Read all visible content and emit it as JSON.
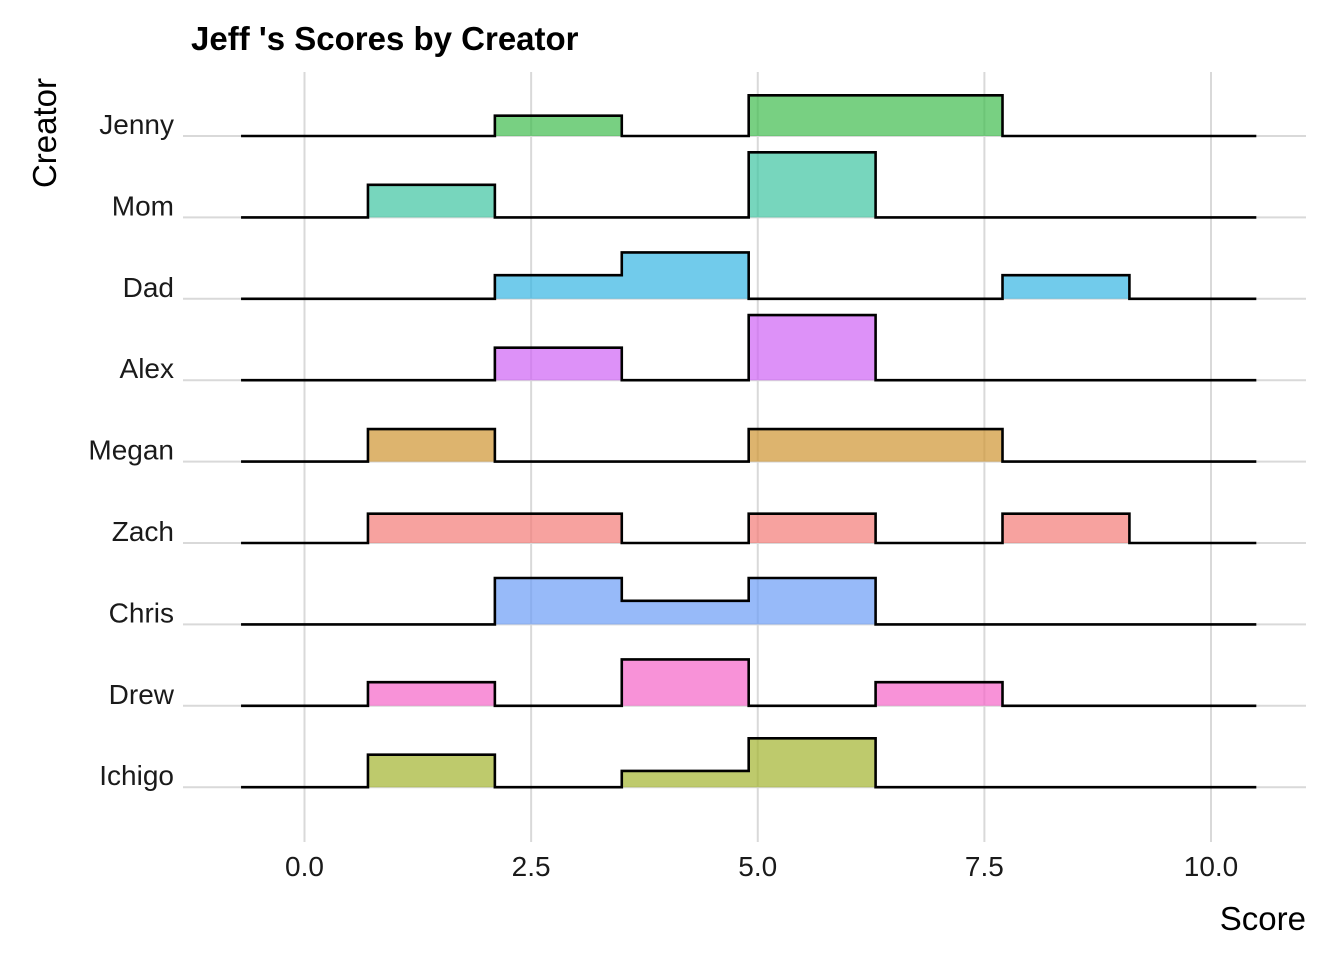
{
  "chart_data": {
    "type": "ridgeline-histogram",
    "title": "Jeff 's Scores by Creator",
    "xlabel": "Score",
    "ylabel": "Creator",
    "xlim": [
      -1.4,
      10.7
    ],
    "x_ticks": [
      0.0,
      2.5,
      5.0,
      7.5,
      10.0
    ],
    "x_tick_labels": [
      "0.0",
      "2.5",
      "5.0",
      "7.5",
      "10.0"
    ],
    "x_range": [
      -0.7,
      10.5
    ],
    "bin_edges": [
      -0.7,
      0.7,
      2.1,
      3.5,
      4.9,
      6.3,
      7.7,
      9.1,
      10.5
    ],
    "grid": true,
    "legend": "none",
    "series": [
      {
        "name": "Ichigo",
        "color": "#A3B32E",
        "heights": [
          0,
          0.4,
          0,
          0.2,
          0.6,
          0,
          0,
          0
        ]
      },
      {
        "name": "Drew",
        "color": "#F564C8",
        "heights": [
          0,
          0.29,
          0,
          0.57,
          0,
          0.29,
          0,
          0
        ]
      },
      {
        "name": "Chris",
        "color": "#6B9CF6",
        "heights": [
          0,
          0,
          0.57,
          0.29,
          0.57,
          0,
          0,
          0
        ]
      },
      {
        "name": "Zach",
        "color": "#F37B76",
        "heights": [
          0,
          0.36,
          0.36,
          0,
          0.36,
          0,
          0.36,
          0
        ]
      },
      {
        "name": "Megan",
        "color": "#CF9430",
        "heights": [
          0,
          0.4,
          0,
          0,
          0.4,
          0.4,
          0,
          0
        ]
      },
      {
        "name": "Alex",
        "color": "#CF63F5",
        "heights": [
          0,
          0,
          0.4,
          0,
          0.8,
          0,
          0,
          0
        ]
      },
      {
        "name": "Dad",
        "color": "#35B5E2",
        "heights": [
          0,
          0,
          0.29,
          0.57,
          0,
          0,
          0.29,
          0
        ]
      },
      {
        "name": "Mom",
        "color": "#3DC5A1",
        "heights": [
          0,
          0.4,
          0,
          0,
          0.8,
          0,
          0,
          0
        ]
      },
      {
        "name": "Jenny",
        "color": "#3EBC4D",
        "heights": [
          0,
          0,
          0.25,
          0,
          0.5,
          0.5,
          0,
          0
        ]
      }
    ]
  }
}
